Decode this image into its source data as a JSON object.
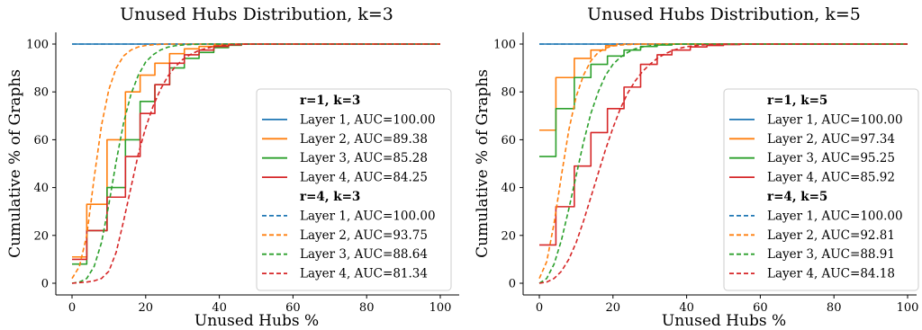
{
  "chart_data": [
    {
      "type": "line",
      "title": "Unused Hubs Distribution, k=3",
      "xlabel": "Unused Hubs %",
      "ylabel": "Cumulative % of Graphs",
      "xlim": [
        0,
        100
      ],
      "ylim": [
        0,
        100
      ],
      "xticks": [
        0,
        20,
        40,
        60,
        80,
        100
      ],
      "yticks": [
        0,
        20,
        40,
        60,
        80,
        100
      ],
      "grid": false,
      "legend_position": "lower-right",
      "groups": [
        {
          "header": "r=1, k=3",
          "linestyle": "solid",
          "series": [
            {
              "name": "Layer 1, AUC=100.00",
              "color": "#1f77b4",
              "x": [
                0,
                100
              ],
              "y": [
                100,
                100
              ]
            },
            {
              "name": "Layer 2, AUC=89.38",
              "color": "#ff7f0e",
              "x": [
                0,
                4,
                4,
                9.5,
                9.5,
                14.5,
                14.5,
                18.5,
                18.5,
                22.5,
                22.5,
                26.5,
                26.5,
                30.5,
                30.5,
                34.5,
                34.5,
                38.5,
                38.5,
                42.5,
                42.5,
                100
              ],
              "y": [
                11,
                11,
                33,
                33,
                60,
                60,
                80,
                80,
                87,
                87,
                92,
                92,
                96,
                96,
                98,
                98,
                99,
                99,
                99.5,
                99.5,
                100,
                100
              ]
            },
            {
              "name": "Layer 3, AUC=85.28",
              "color": "#2ca02c",
              "x": [
                0,
                4,
                4,
                9.5,
                9.5,
                14.5,
                14.5,
                18.5,
                18.5,
                22.5,
                22.5,
                26.5,
                26.5,
                30.5,
                30.5,
                34.5,
                34.5,
                38.5,
                38.5,
                42.5,
                42.5,
                46,
                46,
                100
              ],
              "y": [
                8,
                8,
                22,
                22,
                40,
                40,
                60,
                60,
                76,
                76,
                83,
                83,
                90,
                90,
                94,
                94,
                96.5,
                96.5,
                98.5,
                98.5,
                99.5,
                99.5,
                100,
                100
              ]
            },
            {
              "name": "Layer 4, AUC=84.25",
              "color": "#d62728",
              "x": [
                0,
                4,
                4,
                9.5,
                9.5,
                14.5,
                14.5,
                18.5,
                18.5,
                22.5,
                22.5,
                26.5,
                26.5,
                30.5,
                30.5,
                34.5,
                34.5,
                38.5,
                38.5,
                42.5,
                42.5,
                46,
                46,
                100
              ],
              "y": [
                10,
                10,
                22,
                22,
                36,
                36,
                53,
                53,
                71,
                71,
                83,
                83,
                92,
                92,
                95.5,
                95.5,
                97.5,
                97.5,
                99,
                99,
                99.7,
                99.7,
                100,
                100
              ]
            }
          ]
        },
        {
          "header": "r=4, k=3",
          "linestyle": "dashed",
          "series": [
            {
              "name": "Layer 1, AUC=100.00",
              "color": "#1f77b4",
              "x": [
                0,
                100
              ],
              "y": [
                100,
                100
              ]
            },
            {
              "name": "Layer 2, AUC=93.75",
              "color": "#ff7f0e",
              "x": [
                0,
                2,
                4,
                6,
                8,
                10,
                12,
                14,
                16,
                18,
                20,
                22,
                24,
                26,
                28,
                30,
                100
              ],
              "y": [
                2,
                7,
                20,
                44,
                66,
                81,
                90,
                95,
                97.5,
                98.8,
                99.4,
                99.7,
                99.9,
                100,
                100,
                100,
                100
              ]
            },
            {
              "name": "Layer 3, AUC=88.64",
              "color": "#2ca02c",
              "x": [
                0,
                2,
                4,
                6,
                8,
                10,
                12,
                14,
                16,
                18,
                20,
                22,
                24,
                26,
                28,
                30,
                32,
                34,
                36,
                38,
                40,
                100
              ],
              "y": [
                0,
                0.5,
                2,
                7,
                17,
                33,
                51,
                67,
                79,
                87,
                92.5,
                95.5,
                97.5,
                98.7,
                99.3,
                99.6,
                99.8,
                99.9,
                100,
                100,
                100,
                100
              ]
            },
            {
              "name": "Layer 4, AUC=81.34",
              "color": "#d62728",
              "x": [
                0,
                4,
                6,
                8,
                10,
                12,
                14,
                16,
                18,
                20,
                22,
                24,
                26,
                28,
                30,
                32,
                34,
                36,
                38,
                40,
                42,
                44,
                46,
                48,
                100
              ],
              "y": [
                0,
                0.5,
                1,
                2,
                5,
                13,
                26,
                40,
                54,
                65,
                74,
                81,
                86.5,
                90.5,
                93.5,
                95.5,
                97,
                98,
                98.8,
                99.3,
                99.6,
                99.8,
                99.9,
                100,
                100
              ]
            }
          ]
        }
      ]
    },
    {
      "type": "line",
      "title": "Unused Hubs Distribution, k=5",
      "xlabel": "Unused Hubs %",
      "ylabel": "Cumulative % of Graphs",
      "xlim": [
        0,
        100
      ],
      "ylim": [
        0,
        100
      ],
      "xticks": [
        0,
        20,
        40,
        60,
        80,
        100
      ],
      "yticks": [
        0,
        20,
        40,
        60,
        80,
        100
      ],
      "grid": false,
      "legend_position": "lower-right",
      "groups": [
        {
          "header": "r=1, k=5",
          "linestyle": "solid",
          "series": [
            {
              "name": "Layer 1, AUC=100.00",
              "color": "#1f77b4",
              "x": [
                0,
                100
              ],
              "y": [
                100,
                100
              ]
            },
            {
              "name": "Layer 2, AUC=97.34",
              "color": "#ff7f0e",
              "x": [
                0,
                4.5,
                4.5,
                9.5,
                9.5,
                14,
                14,
                18,
                18,
                21,
                21,
                100
              ],
              "y": [
                64,
                64,
                86,
                86,
                94,
                94,
                97.5,
                97.5,
                99.3,
                99.3,
                100,
                100
              ]
            },
            {
              "name": "Layer 3, AUC=95.25",
              "color": "#2ca02c",
              "x": [
                0,
                4.5,
                4.5,
                9.5,
                9.5,
                14,
                14,
                18.5,
                18.5,
                23,
                23,
                27.5,
                27.5,
                32,
                32,
                36,
                36,
                100
              ],
              "y": [
                53,
                53,
                73,
                73,
                86,
                86,
                91.5,
                91.5,
                95,
                95,
                97.5,
                97.5,
                99,
                99,
                99.6,
                99.6,
                100,
                100
              ]
            },
            {
              "name": "Layer 4, AUC=85.92",
              "color": "#d62728",
              "x": [
                0,
                4.5,
                4.5,
                9.5,
                9.5,
                14,
                14,
                18.5,
                18.5,
                23,
                23,
                27.5,
                27.5,
                32,
                32,
                36,
                36,
                41,
                41,
                45.5,
                45.5,
                50,
                50,
                54.5,
                54.5,
                100
              ],
              "y": [
                16,
                16,
                32,
                32,
                49,
                49,
                63,
                63,
                73,
                73,
                82,
                82,
                91.5,
                91.5,
                95.5,
                95.5,
                97.5,
                97.5,
                98.8,
                98.8,
                99.4,
                99.4,
                99.8,
                99.8,
                100,
                100
              ]
            }
          ]
        },
        {
          "header": "r=4, k=5",
          "linestyle": "dashed",
          "series": [
            {
              "name": "Layer 1, AUC=100.00",
              "color": "#1f77b4",
              "x": [
                0,
                100
              ],
              "y": [
                100,
                100
              ]
            },
            {
              "name": "Layer 2, AUC=92.81",
              "color": "#ff7f0e",
              "x": [
                0,
                2,
                4,
                6,
                8,
                10,
                12,
                14,
                16,
                18,
                20,
                22,
                24,
                26,
                28,
                30,
                100
              ],
              "y": [
                2,
                9,
                25,
                45,
                64,
                78,
                87,
                93,
                96.5,
                98.3,
                99.2,
                99.6,
                99.8,
                99.9,
                100,
                100,
                100
              ]
            },
            {
              "name": "Layer 3, AUC=88.91",
              "color": "#2ca02c",
              "x": [
                0,
                2,
                4,
                6,
                8,
                10,
                12,
                14,
                16,
                18,
                20,
                22,
                24,
                26,
                28,
                30,
                32,
                34,
                36,
                38,
                40,
                100
              ],
              "y": [
                0,
                2,
                8,
                18,
                31,
                45,
                59,
                71,
                80,
                87,
                91.5,
                94.5,
                96.5,
                98,
                98.8,
                99.3,
                99.6,
                99.8,
                99.9,
                100,
                100,
                100
              ]
            },
            {
              "name": "Layer 4, AUC=84.18",
              "color": "#d62728",
              "x": [
                0,
                2,
                4,
                6,
                8,
                10,
                12,
                14,
                16,
                18,
                20,
                22,
                24,
                26,
                28,
                30,
                32,
                34,
                36,
                38,
                40,
                42,
                44,
                46,
                48,
                50,
                100
              ],
              "y": [
                0,
                0.5,
                2,
                5,
                10,
                17,
                26,
                36,
                46,
                56,
                65,
                73,
                79.5,
                84.5,
                88.5,
                91.5,
                94,
                95.8,
                97.2,
                98.2,
                98.9,
                99.3,
                99.6,
                99.8,
                99.9,
                100,
                100
              ]
            }
          ]
        }
      ]
    }
  ]
}
